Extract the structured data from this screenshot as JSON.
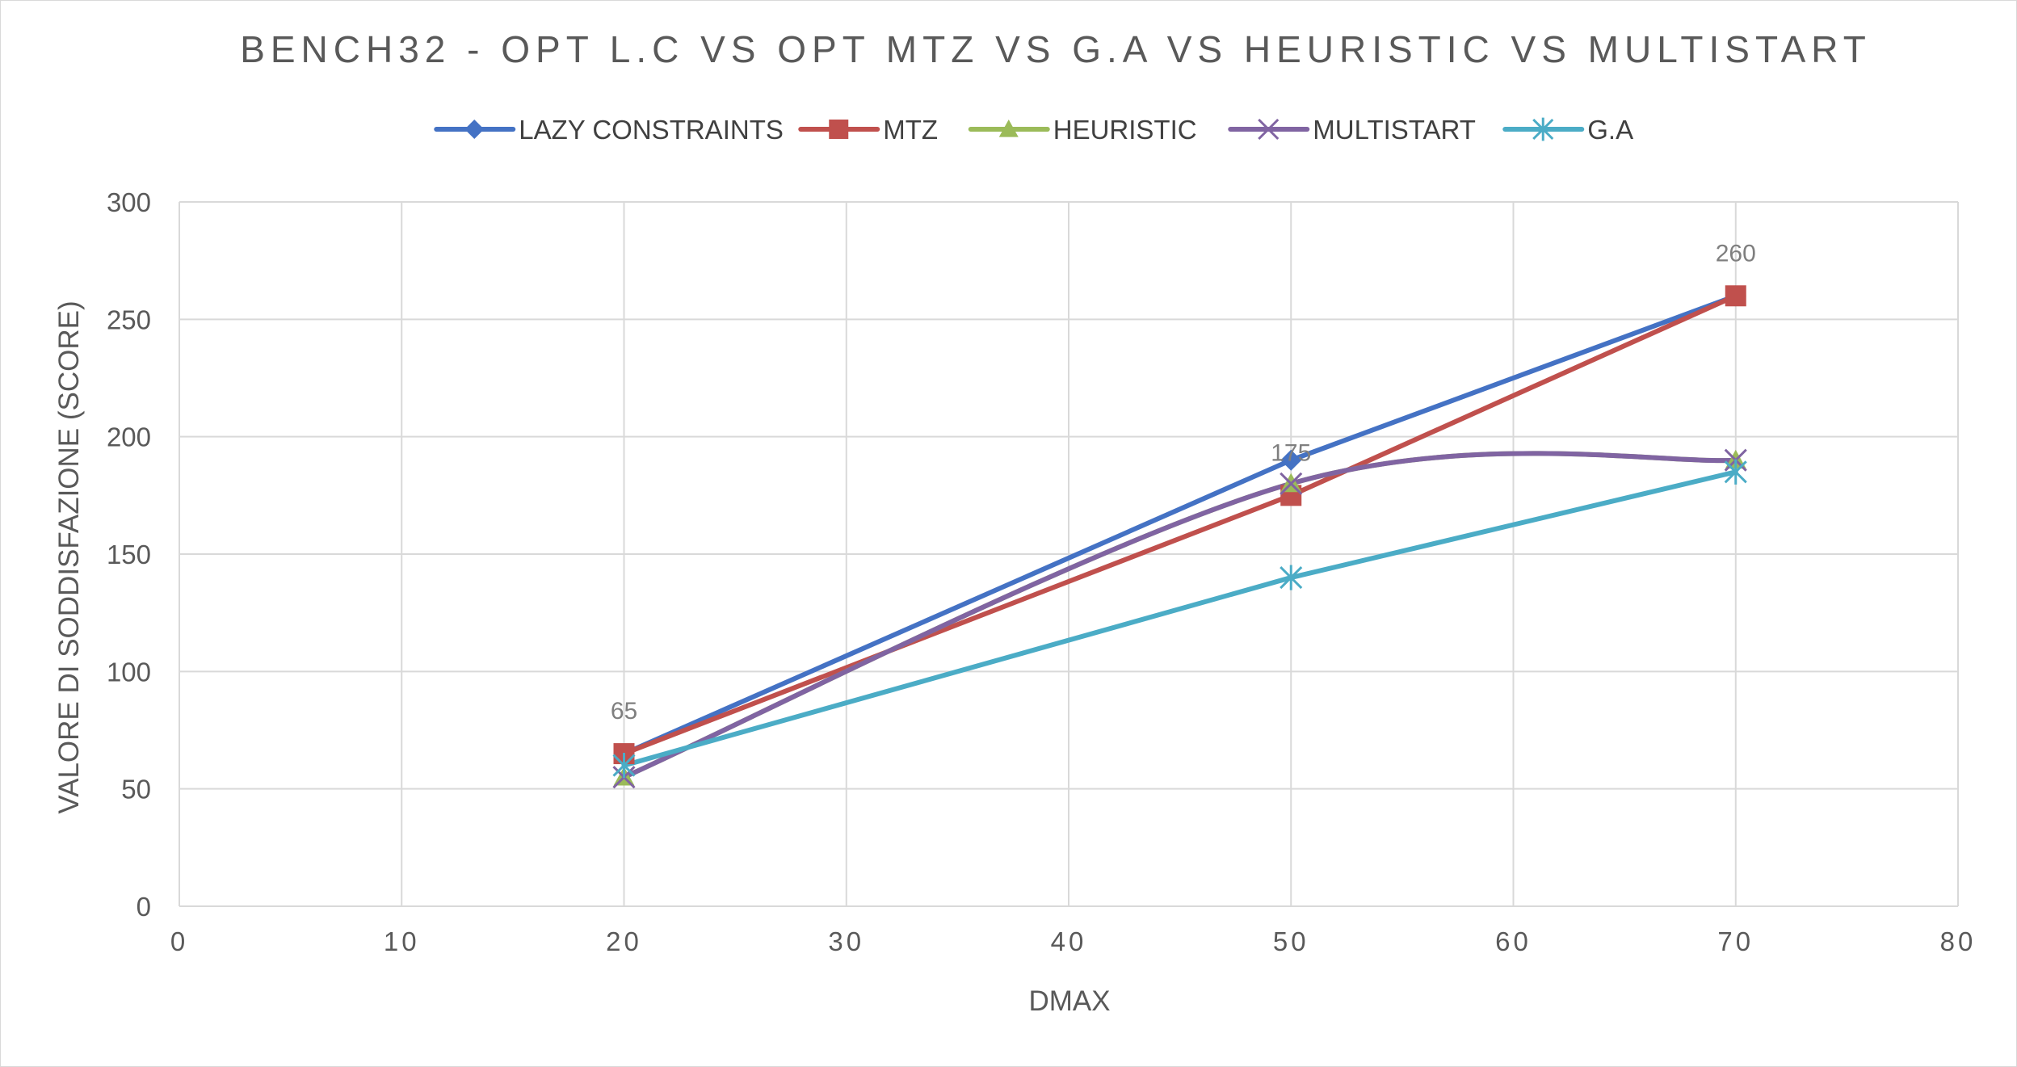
{
  "chart_data": {
    "type": "line",
    "title": "BENCH32 - OPT L.C VS OPT MTZ VS G.A VS HEURISTIC VS MULTISTART",
    "xlabel": "DMAX",
    "ylabel": "VALORE DI SODDISFAZIONE (SCORE)",
    "xlim": [
      0,
      80
    ],
    "ylim": [
      0,
      300
    ],
    "x_ticks": [
      0,
      10,
      20,
      30,
      40,
      50,
      60,
      70,
      80
    ],
    "y_ticks": [
      0,
      50,
      100,
      150,
      200,
      250,
      300
    ],
    "grid": true,
    "legend_position": "top",
    "x": [
      20,
      50,
      70
    ],
    "series": [
      {
        "name": "LAZY CONSTRAINTS",
        "values": [
          65,
          190,
          260
        ],
        "color": "#4472c4",
        "marker": "diamond",
        "smooth": false
      },
      {
        "name": "MTZ",
        "values": [
          65,
          175,
          260
        ],
        "color": "#c0504d",
        "marker": "square",
        "smooth": false
      },
      {
        "name": "HEURISTIC",
        "values": [
          55,
          180,
          190
        ],
        "color": "#9bbb59",
        "marker": "triangle",
        "smooth": true
      },
      {
        "name": "MULTISTART",
        "values": [
          55,
          180,
          190
        ],
        "color": "#8064a2",
        "marker": "x",
        "smooth": true
      },
      {
        "name": "G.A",
        "values": [
          60,
          140,
          185
        ],
        "color": "#4bacc6",
        "marker": "asterisk",
        "smooth": false
      }
    ],
    "data_labels": [
      {
        "series": "MTZ",
        "x": 20,
        "y": 65,
        "text": "65"
      },
      {
        "series": "MTZ",
        "x": 50,
        "y": 175,
        "text": "175"
      },
      {
        "series": "MTZ",
        "x": 70,
        "y": 260,
        "text": "260"
      }
    ]
  }
}
